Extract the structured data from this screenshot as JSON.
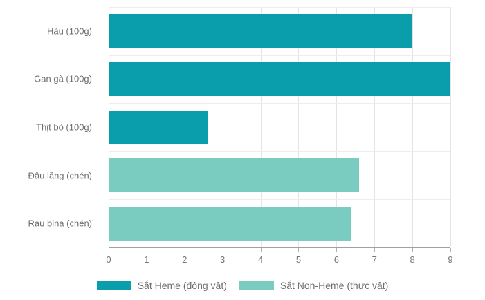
{
  "chart_data": {
    "type": "bar",
    "orientation": "horizontal",
    "title": "",
    "xlabel": "",
    "ylabel": "",
    "categories": [
      "Hàu (100g)",
      "Gan gà (100g)",
      "Thịt bò (100g)",
      "Đậu lăng (chén)",
      "Rau bina (chén)"
    ],
    "values": [
      8,
      9,
      2.6,
      6.6,
      6.4
    ],
    "groups": [
      "heme",
      "heme",
      "heme",
      "non_heme",
      "non_heme"
    ],
    "series_colors": {
      "heme": "#0a9eac",
      "non_heme": "#7accc0"
    },
    "xlim": [
      0,
      9
    ],
    "xticks": [
      0,
      1,
      2,
      3,
      4,
      5,
      6,
      7,
      8,
      9
    ],
    "grid": true,
    "legend_position": "bottom",
    "legend": [
      {
        "key": "heme",
        "label": "Sắt Heme (động vật)",
        "color": "#0a9eac"
      },
      {
        "key": "non_heme",
        "label": "Sắt Non-Heme (thực vật)",
        "color": "#7accc0"
      }
    ],
    "colors": {
      "gridline": "#e4e4e4",
      "band_line": "#ececec",
      "axis_line": "#a0a0a0",
      "tick_mark": "#b0b0b0",
      "label_text": "#6e6e6e",
      "tick_text": "#757575",
      "background": "#ffffff"
    }
  }
}
